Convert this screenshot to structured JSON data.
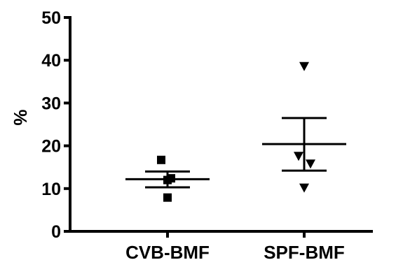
{
  "chart_data": {
    "type": "scatter",
    "ylabel": "%",
    "xlabel": "",
    "ylim": [
      0,
      50
    ],
    "y_ticks": [
      0,
      10,
      20,
      30,
      40,
      50
    ],
    "y_tick_labels": [
      "0",
      "10",
      "20",
      "30",
      "40",
      "50"
    ],
    "categories": [
      "CVB-BMF",
      "SPF-BMF"
    ],
    "grid": false,
    "legend": "none",
    "series": [
      {
        "category": "CVB-BMF",
        "marker": "square",
        "color": "#000000",
        "points": [
          16.7,
          12.4,
          12.0,
          7.9
        ],
        "mean": 12.2,
        "sem_upper": 14.0,
        "sem_lower": 10.3
      },
      {
        "category": "SPF-BMF",
        "marker": "triangle-down",
        "color": "#000000",
        "points": [
          38.6,
          17.6,
          15.8,
          10.2
        ],
        "mean": 20.4,
        "sem_upper": 26.5,
        "sem_lower": 14.2
      }
    ]
  }
}
